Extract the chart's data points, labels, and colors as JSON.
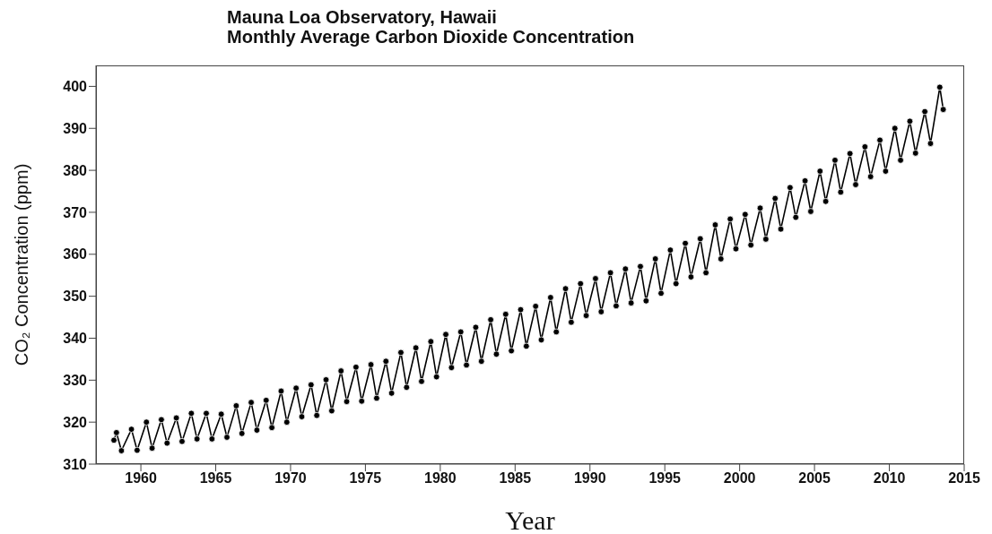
{
  "chart_data": {
    "type": "line",
    "title": "Mauna Loa Observatory, Hawaii",
    "subtitle": "Monthly Average Carbon Dioxide Concentration",
    "xlabel": "Year",
    "ylabel": "CO₂ Concentration (ppm)",
    "xlim": [
      1957,
      2015
    ],
    "xticks": [
      1960,
      1965,
      1970,
      1975,
      1980,
      1985,
      1990,
      1995,
      2000,
      2005,
      2010,
      2015
    ],
    "ylim": [
      310,
      405
    ],
    "yticks": [
      310,
      320,
      330,
      340,
      350,
      360,
      370,
      380,
      390,
      400
    ],
    "grid": false,
    "marker": "circle",
    "line_style": "solid",
    "series": [
      {
        "color": "#000000",
        "x": [
          1958.2,
          1958.37,
          1958.7,
          1959.37,
          1959.75,
          1960.37,
          1960.75,
          1961.37,
          1961.75,
          1962.37,
          1962.75,
          1963.37,
          1963.75,
          1964.37,
          1964.75,
          1965.37,
          1965.75,
          1966.37,
          1966.75,
          1967.37,
          1967.75,
          1968.37,
          1968.75,
          1969.37,
          1969.75,
          1970.37,
          1970.75,
          1971.37,
          1971.75,
          1972.37,
          1972.75,
          1973.37,
          1973.75,
          1974.37,
          1974.75,
          1975.37,
          1975.75,
          1976.37,
          1976.75,
          1977.37,
          1977.75,
          1978.37,
          1978.75,
          1979.37,
          1979.75,
          1980.37,
          1980.75,
          1981.37,
          1981.75,
          1982.37,
          1982.75,
          1983.37,
          1983.75,
          1984.37,
          1984.75,
          1985.37,
          1985.75,
          1986.37,
          1986.75,
          1987.37,
          1987.75,
          1988.37,
          1988.75,
          1989.37,
          1989.75,
          1990.37,
          1990.75,
          1991.37,
          1991.75,
          1992.37,
          1992.75,
          1993.37,
          1993.75,
          1994.37,
          1994.75,
          1995.37,
          1995.75,
          1996.37,
          1996.75,
          1997.37,
          1997.75,
          1998.37,
          1998.75,
          1999.37,
          1999.75,
          2000.37,
          2000.75,
          2001.37,
          2001.75,
          2002.37,
          2002.75,
          2003.37,
          2003.75,
          2004.37,
          2004.75,
          2005.37,
          2005.75,
          2006.37,
          2006.75,
          2007.37,
          2007.75,
          2008.37,
          2008.75,
          2009.37,
          2009.75,
          2010.37,
          2010.75,
          2011.37,
          2011.75,
          2012.37,
          2012.75,
          2013.37,
          2013.6
        ],
        "values": [
          315.7,
          317.5,
          313.2,
          318.3,
          313.3,
          320.0,
          313.8,
          320.6,
          315.0,
          321.0,
          315.4,
          322.1,
          316.0,
          322.1,
          316.0,
          321.9,
          316.4,
          323.9,
          317.3,
          324.7,
          318.1,
          325.2,
          318.7,
          327.4,
          320.0,
          328.1,
          321.3,
          328.9,
          321.6,
          330.1,
          322.7,
          332.2,
          324.9,
          333.1,
          325.0,
          333.7,
          325.7,
          334.5,
          326.9,
          336.6,
          328.3,
          337.7,
          329.7,
          339.2,
          330.8,
          340.9,
          333.0,
          341.5,
          333.6,
          342.6,
          334.5,
          344.4,
          336.2,
          345.7,
          337.0,
          346.8,
          338.1,
          347.6,
          339.6,
          349.7,
          341.5,
          351.8,
          343.8,
          353.0,
          345.4,
          354.2,
          346.3,
          355.6,
          347.7,
          356.5,
          348.4,
          357.1,
          348.9,
          358.9,
          350.7,
          361.0,
          353.0,
          362.6,
          354.6,
          363.7,
          355.6,
          367.0,
          358.9,
          368.4,
          361.3,
          369.5,
          362.2,
          371.0,
          363.6,
          373.3,
          366.0,
          375.9,
          368.8,
          377.5,
          370.2,
          379.8,
          372.6,
          382.4,
          374.8,
          384.0,
          376.6,
          385.6,
          378.5,
          387.2,
          379.8,
          390.0,
          382.4,
          391.7,
          384.1,
          394.0,
          386.4,
          399.8,
          394.5
        ]
      }
    ]
  }
}
